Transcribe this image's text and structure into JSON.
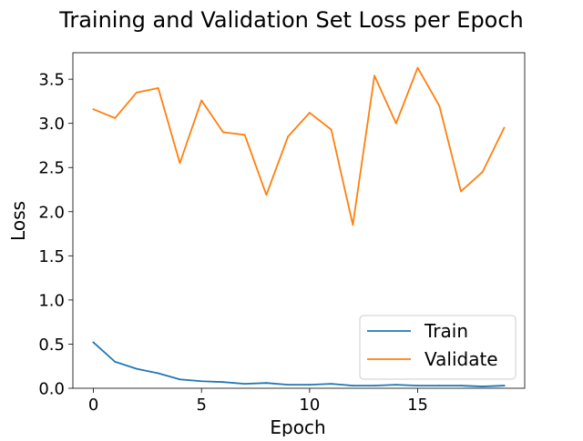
{
  "chart_data": {
    "type": "line",
    "title": "Training and Validation Set Loss per Epoch",
    "xlabel": "Epoch",
    "ylabel": "Loss",
    "xlim": [
      -0.95,
      19.95
    ],
    "ylim": [
      0.0,
      3.8
    ],
    "xticks": [
      0,
      5,
      10,
      15
    ],
    "xtick_labels": [
      "0",
      "5",
      "10",
      "15"
    ],
    "yticks": [
      0.0,
      0.5,
      1.0,
      1.5,
      2.0,
      2.5,
      3.0,
      3.5
    ],
    "ytick_labels": [
      "0.0",
      "0.5",
      "1.0",
      "1.5",
      "2.0",
      "2.5",
      "3.0",
      "3.5"
    ],
    "grid": false,
    "legend_position": "bottom-right",
    "x": [
      0,
      1,
      2,
      3,
      4,
      5,
      6,
      7,
      8,
      9,
      10,
      11,
      12,
      13,
      14,
      15,
      16,
      17,
      18,
      19
    ],
    "series": [
      {
        "name": "Train",
        "color": "#1f77b4",
        "values": [
          0.52,
          0.3,
          0.22,
          0.17,
          0.1,
          0.08,
          0.07,
          0.05,
          0.06,
          0.04,
          0.04,
          0.05,
          0.03,
          0.03,
          0.04,
          0.03,
          0.03,
          0.03,
          0.02,
          0.03
        ]
      },
      {
        "name": "Validate",
        "color": "#ff7f0e",
        "values": [
          3.16,
          3.06,
          3.35,
          3.4,
          2.55,
          3.26,
          2.9,
          2.87,
          2.19,
          2.85,
          3.12,
          2.93,
          1.85,
          3.54,
          3.0,
          3.63,
          3.2,
          2.23,
          2.45,
          2.95
        ]
      }
    ]
  }
}
